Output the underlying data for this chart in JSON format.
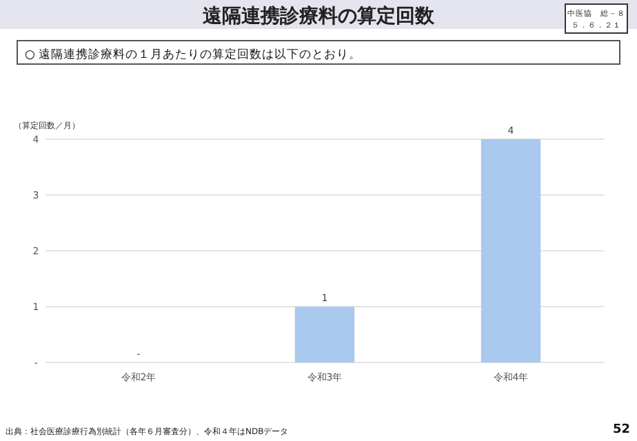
{
  "chart_data": {
    "type": "bar",
    "title": "遠隔連携診療料の算定回数",
    "subtitle": "○ 遠隔連携診療料の１月あたりの算定回数は以下のとおり。",
    "ylabel": "（算定回数／月）",
    "categories": [
      "令和2年",
      "令和3年",
      "令和4年"
    ],
    "values": [
      0,
      1,
      4
    ],
    "value_labels": [
      "-",
      "1",
      "4"
    ],
    "color": "#a9c9ee",
    "ylim": [
      0,
      4
    ],
    "yticks": [
      {
        "value": 0,
        "label": "-"
      },
      1,
      2,
      3,
      4
    ],
    "grid": "y",
    "annotations": [
      "中医協　総－８",
      "５．６．２１",
      "出典：社会医療診療行為別統計（各年６月審査分）、令和４年はNDBデータ",
      "52"
    ]
  }
}
